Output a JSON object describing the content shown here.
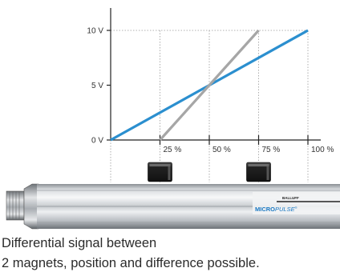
{
  "chart_data": {
    "type": "line",
    "x_unit": "%",
    "y_unit": "V",
    "xlim": [
      0,
      100
    ],
    "ylim": [
      0,
      10
    ],
    "x_ticks": [
      {
        "value": 25,
        "label": "25 %"
      },
      {
        "value": 50,
        "label": "50 %"
      },
      {
        "value": 75,
        "label": "75 %"
      },
      {
        "value": 100,
        "label": "100 %"
      }
    ],
    "y_ticks": [
      {
        "value": 0,
        "label": "0 V"
      },
      {
        "value": 5,
        "label": "5 V"
      },
      {
        "value": 10,
        "label": "10 V"
      }
    ],
    "series": [
      {
        "color": "#2b8fcf",
        "x": [
          0,
          100
        ],
        "y": [
          0,
          10
        ]
      },
      {
        "color": "#a6a6a6",
        "x": [
          25,
          75
        ],
        "y": [
          0,
          10
        ]
      }
    ],
    "magnet_positions": [
      25,
      75
    ]
  },
  "sensor": {
    "brand_bold": "MICRO",
    "brand_italic": "PULSE",
    "brand_mark": "®",
    "maker": "BALLUFF"
  },
  "caption": {
    "line1": "Differential signal between",
    "line2": "2 magnets, position and difference possible."
  },
  "colors": {
    "blue_line": "#2b8fcf",
    "grey_line": "#a6a6a6",
    "brand_blue": "#1a78c2",
    "magnet": "#1e1e1e"
  }
}
